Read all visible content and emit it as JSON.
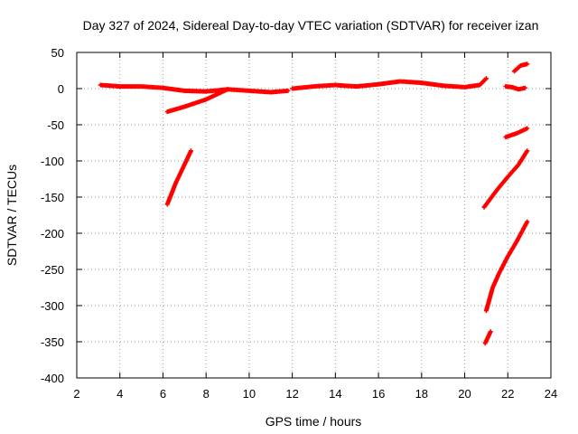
{
  "chart_data": {
    "type": "scatter",
    "title": "Day 327 of 2024, Sidereal Day-to-day VTEC variation (SDTVAR) for receiver izan",
    "xlabel": "GPS time / hours",
    "ylabel": "SDTVAR / TECUs",
    "xlim": [
      2,
      24
    ],
    "ylim": [
      -400,
      50
    ],
    "xticks": [
      2,
      4,
      6,
      8,
      10,
      12,
      14,
      16,
      18,
      20,
      22,
      24
    ],
    "yticks": [
      50,
      0,
      -50,
      -100,
      -150,
      -200,
      -250,
      -300,
      -350,
      -400
    ],
    "grid": true,
    "marker_color": "#ff0000",
    "marker": "plus",
    "segments": [
      {
        "x": [
          3.1,
          4.0,
          5.0,
          6.0,
          7.0,
          8.0,
          9.0,
          10.0,
          11.0,
          11.8
        ],
        "y": [
          5,
          3,
          3,
          1,
          -3,
          -4,
          -1,
          -3,
          -5,
          -3
        ]
      },
      {
        "x": [
          12.0,
          13.0,
          14.0,
          14.4,
          15.0,
          16.0,
          17.0,
          18.0,
          19.0,
          20.0,
          20.7,
          21.0
        ],
        "y": [
          0,
          3,
          5,
          4,
          3,
          6,
          10,
          8,
          4,
          2,
          5,
          14
        ]
      },
      {
        "x": [
          6.2,
          7.0,
          8.0,
          9.0
        ],
        "y": [
          -32,
          -25,
          -15,
          -1
        ]
      },
      {
        "x": [
          6.2,
          6.6,
          7.0,
          7.3
        ],
        "y": [
          -160,
          -130,
          -105,
          -86
        ]
      },
      {
        "x": [
          21.9,
          22.2,
          22.5,
          22.8
        ],
        "y": [
          3,
          2,
          -1,
          1
        ]
      },
      {
        "x": [
          22.3,
          22.6,
          22.9
        ],
        "y": [
          24,
          32,
          34
        ]
      },
      {
        "x": [
          21.9,
          22.4,
          22.9
        ],
        "y": [
          -67,
          -62,
          -55
        ]
      },
      {
        "x": [
          20.9,
          21.5,
          22.0,
          22.5,
          22.9
        ],
        "y": [
          -164,
          -140,
          -122,
          -105,
          -86
        ]
      },
      {
        "x": [
          21.0,
          21.3,
          21.6,
          22.0,
          22.4,
          22.9
        ],
        "y": [
          -307,
          -275,
          -255,
          -232,
          -212,
          -184
        ]
      },
      {
        "x": [
          20.95,
          21.2
        ],
        "y": [
          -352,
          -336
        ]
      }
    ]
  }
}
